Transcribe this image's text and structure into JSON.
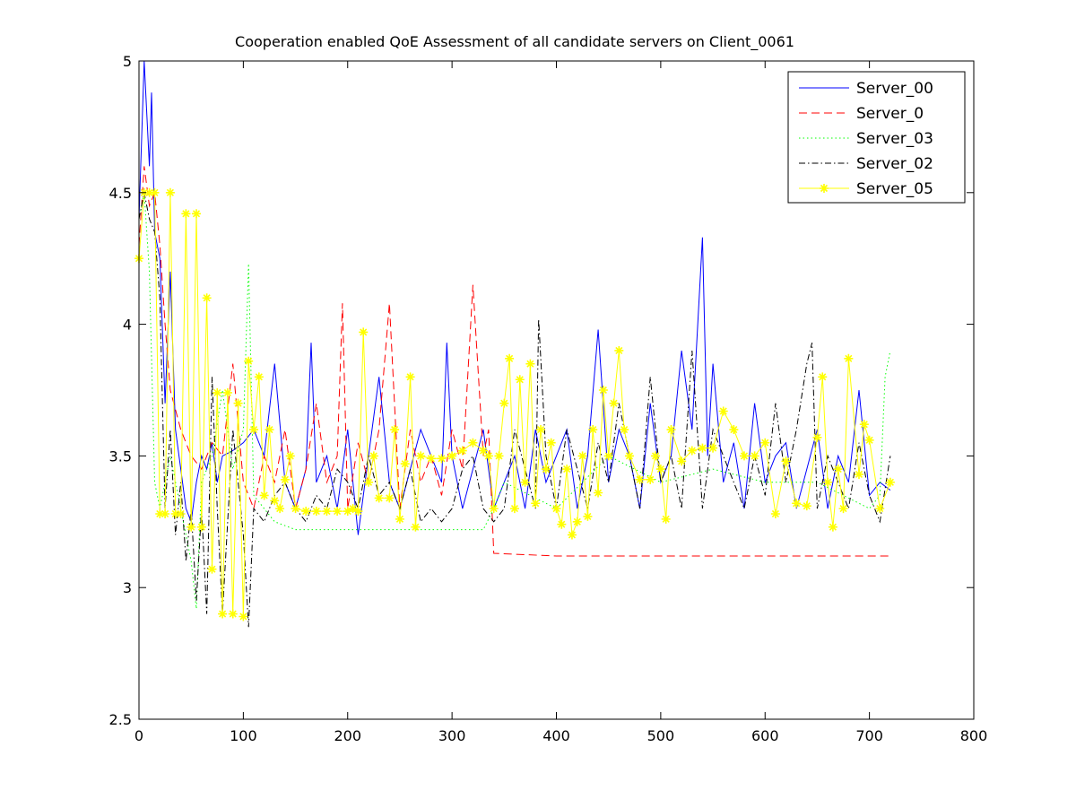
{
  "chart_data": {
    "type": "line",
    "title": "Cooperation enabled QoE Assessment of all candidate servers on Client_0061",
    "xlabel": "",
    "ylabel": "",
    "xlim": [
      0,
      800
    ],
    "ylim": [
      2.5,
      5
    ],
    "xticks": [
      0,
      100,
      200,
      300,
      400,
      500,
      600,
      700,
      800
    ],
    "yticks": [
      2.5,
      3,
      3.5,
      4,
      4.5,
      5
    ],
    "xtick_labels": [
      "0",
      "100",
      "200",
      "300",
      "400",
      "500",
      "600",
      "700",
      "800"
    ],
    "ytick_labels": [
      "2.5",
      "3",
      "3.5",
      "4",
      "4.5",
      "5"
    ],
    "grid": false,
    "legend_position": "top-right",
    "series": [
      {
        "name": "Server_00",
        "color": "#0000ff",
        "dash": "solid",
        "marker": "none",
        "x": [
          0,
          5,
          10,
          12,
          15,
          20,
          25,
          30,
          35,
          40,
          45,
          50,
          55,
          60,
          65,
          70,
          75,
          80,
          90,
          100,
          110,
          120,
          130,
          140,
          150,
          160,
          165,
          170,
          180,
          190,
          200,
          210,
          220,
          230,
          240,
          250,
          260,
          270,
          280,
          290,
          295,
          300,
          310,
          320,
          330,
          340,
          350,
          360,
          370,
          380,
          390,
          400,
          410,
          420,
          430,
          440,
          450,
          460,
          470,
          480,
          490,
          500,
          510,
          520,
          530,
          540,
          545,
          550,
          560,
          570,
          580,
          590,
          600,
          610,
          620,
          630,
          640,
          650,
          660,
          670,
          680,
          690,
          700,
          710,
          720
        ],
        "y": [
          4.4,
          5.0,
          4.6,
          4.88,
          4.35,
          4.25,
          3.7,
          4.2,
          3.6,
          3.45,
          3.3,
          3.25,
          3.4,
          3.5,
          3.45,
          3.55,
          3.4,
          3.5,
          3.52,
          3.55,
          3.6,
          3.5,
          3.85,
          3.4,
          3.3,
          3.45,
          3.93,
          3.4,
          3.5,
          3.3,
          3.6,
          3.2,
          3.5,
          3.8,
          3.4,
          3.3,
          3.45,
          3.6,
          3.5,
          3.4,
          3.93,
          3.5,
          3.3,
          3.45,
          3.6,
          3.3,
          3.4,
          3.5,
          3.3,
          3.6,
          3.4,
          3.5,
          3.6,
          3.3,
          3.5,
          3.98,
          3.4,
          3.6,
          3.5,
          3.3,
          3.7,
          3.4,
          3.5,
          3.9,
          3.6,
          4.33,
          3.5,
          3.85,
          3.4,
          3.55,
          3.3,
          3.7,
          3.4,
          3.5,
          3.55,
          3.3,
          3.45,
          3.6,
          3.3,
          3.5,
          3.4,
          3.75,
          3.35,
          3.4,
          3.37
        ]
      },
      {
        "name": "Server_0",
        "color": "#ff0000",
        "dash": "dashed",
        "marker": "none",
        "x": [
          0,
          5,
          10,
          15,
          20,
          25,
          30,
          40,
          50,
          60,
          70,
          80,
          90,
          100,
          110,
          120,
          130,
          140,
          150,
          160,
          170,
          180,
          190,
          195,
          200,
          210,
          220,
          230,
          240,
          250,
          260,
          270,
          280,
          290,
          300,
          310,
          320,
          330,
          335,
          340,
          400,
          500,
          600,
          700,
          720
        ],
        "y": [
          4.3,
          4.6,
          4.45,
          4.5,
          4.3,
          4.0,
          3.75,
          3.6,
          3.5,
          3.45,
          3.55,
          3.5,
          3.85,
          3.4,
          3.3,
          3.5,
          3.4,
          3.6,
          3.3,
          3.45,
          3.7,
          3.4,
          3.5,
          4.08,
          3.3,
          3.55,
          3.4,
          3.6,
          4.08,
          3.3,
          3.6,
          3.4,
          3.5,
          3.35,
          3.6,
          3.45,
          4.15,
          3.5,
          3.6,
          3.13,
          3.12,
          3.12,
          3.12,
          3.12,
          3.12
        ]
      },
      {
        "name": "Server_03",
        "color": "#00ff00",
        "dash": "dotted",
        "marker": "none",
        "x": [
          0,
          5,
          10,
          15,
          20,
          30,
          40,
          50,
          55,
          60,
          70,
          80,
          90,
          100,
          105,
          110,
          120,
          130,
          150,
          200,
          250,
          300,
          330,
          340,
          350,
          400,
          450,
          500,
          550,
          600,
          650,
          700,
          710,
          715,
          720
        ],
        "y": [
          4.4,
          4.5,
          4.2,
          3.4,
          3.3,
          3.5,
          3.3,
          3.1,
          2.92,
          3.4,
          3.5,
          3.75,
          3.45,
          3.6,
          4.23,
          3.35,
          3.3,
          3.25,
          3.22,
          3.22,
          3.22,
          3.22,
          3.22,
          3.3,
          3.4,
          3.3,
          3.5,
          3.4,
          3.45,
          3.4,
          3.4,
          3.3,
          3.35,
          3.8,
          3.9
        ]
      },
      {
        "name": "Server_02",
        "color": "#000000",
        "dash": "dashdot",
        "marker": "none",
        "x": [
          0,
          5,
          10,
          15,
          20,
          25,
          30,
          35,
          40,
          45,
          50,
          55,
          60,
          65,
          70,
          75,
          80,
          90,
          100,
          105,
          110,
          120,
          130,
          140,
          150,
          160,
          170,
          180,
          190,
          200,
          210,
          220,
          230,
          240,
          250,
          260,
          270,
          280,
          290,
          300,
          310,
          320,
          330,
          340,
          350,
          360,
          370,
          380,
          383,
          390,
          400,
          410,
          420,
          430,
          440,
          450,
          460,
          470,
          480,
          490,
          500,
          510,
          520,
          530,
          540,
          550,
          560,
          570,
          580,
          590,
          600,
          610,
          620,
          630,
          640,
          645,
          650,
          660,
          670,
          680,
          690,
          700,
          710,
          720
        ],
        "y": [
          4.4,
          4.5,
          4.4,
          4.35,
          4.1,
          3.3,
          3.6,
          3.2,
          3.4,
          3.1,
          3.3,
          2.95,
          3.3,
          2.9,
          3.8,
          3.3,
          2.9,
          3.6,
          3.2,
          2.85,
          3.3,
          3.25,
          3.35,
          3.4,
          3.3,
          3.25,
          3.35,
          3.3,
          3.45,
          3.4,
          3.3,
          3.5,
          3.35,
          3.4,
          3.3,
          3.45,
          3.25,
          3.3,
          3.25,
          3.3,
          3.45,
          3.5,
          3.3,
          3.25,
          3.3,
          3.6,
          3.45,
          3.3,
          4.02,
          3.5,
          3.3,
          3.6,
          3.45,
          3.3,
          3.55,
          3.4,
          3.7,
          3.5,
          3.3,
          3.8,
          3.4,
          3.5,
          3.3,
          3.9,
          3.3,
          3.6,
          3.5,
          3.4,
          3.3,
          3.5,
          3.35,
          3.7,
          3.4,
          3.6,
          3.85,
          3.93,
          3.3,
          3.5,
          3.4,
          3.3,
          3.55,
          3.35,
          3.25,
          3.5
        ]
      },
      {
        "name": "Server_05",
        "color": "#ffff00",
        "dash": "solid",
        "marker": "star",
        "x": [
          0,
          5,
          10,
          15,
          20,
          25,
          30,
          35,
          40,
          45,
          50,
          55,
          60,
          65,
          70,
          75,
          80,
          85,
          90,
          95,
          100,
          105,
          110,
          115,
          120,
          125,
          130,
          135,
          140,
          145,
          150,
          160,
          170,
          180,
          190,
          200,
          205,
          210,
          215,
          220,
          225,
          230,
          240,
          245,
          250,
          255,
          260,
          265,
          270,
          280,
          290,
          300,
          310,
          320,
          330,
          335,
          340,
          345,
          350,
          355,
          360,
          365,
          370,
          375,
          380,
          385,
          390,
          395,
          400,
          405,
          410,
          415,
          420,
          425,
          430,
          435,
          440,
          445,
          450,
          455,
          460,
          465,
          470,
          480,
          490,
          495,
          500,
          505,
          510,
          520,
          530,
          540,
          550,
          560,
          570,
          580,
          590,
          600,
          610,
          620,
          630,
          640,
          650,
          655,
          660,
          665,
          670,
          675,
          680,
          690,
          695,
          700,
          710,
          720
        ],
        "y": [
          4.25,
          4.5,
          4.5,
          4.5,
          3.28,
          3.28,
          4.5,
          3.28,
          3.28,
          4.42,
          3.23,
          4.42,
          3.23,
          4.1,
          3.07,
          3.74,
          2.9,
          3.74,
          2.9,
          3.7,
          2.89,
          3.86,
          3.6,
          3.8,
          3.35,
          3.6,
          3.33,
          3.3,
          3.41,
          3.5,
          3.3,
          3.29,
          3.29,
          3.29,
          3.29,
          3.29,
          3.3,
          3.29,
          3.97,
          3.4,
          3.5,
          3.34,
          3.34,
          3.6,
          3.26,
          3.47,
          3.8,
          3.23,
          3.5,
          3.49,
          3.49,
          3.5,
          3.52,
          3.55,
          3.52,
          3.5,
          3.3,
          3.5,
          3.7,
          3.87,
          3.3,
          3.79,
          3.4,
          3.85,
          3.32,
          3.6,
          3.45,
          3.55,
          3.3,
          3.24,
          3.45,
          3.2,
          3.25,
          3.5,
          3.27,
          3.6,
          3.36,
          3.75,
          3.5,
          3.7,
          3.9,
          3.6,
          3.5,
          3.41,
          3.41,
          3.5,
          3.45,
          3.26,
          3.6,
          3.48,
          3.52,
          3.53,
          3.53,
          3.67,
          3.6,
          3.5,
          3.5,
          3.55,
          3.28,
          3.48,
          3.32,
          3.31,
          3.57,
          3.8,
          3.4,
          3.23,
          3.45,
          3.3,
          3.87,
          3.43,
          3.62,
          3.56,
          3.3,
          3.4
        ]
      }
    ]
  }
}
